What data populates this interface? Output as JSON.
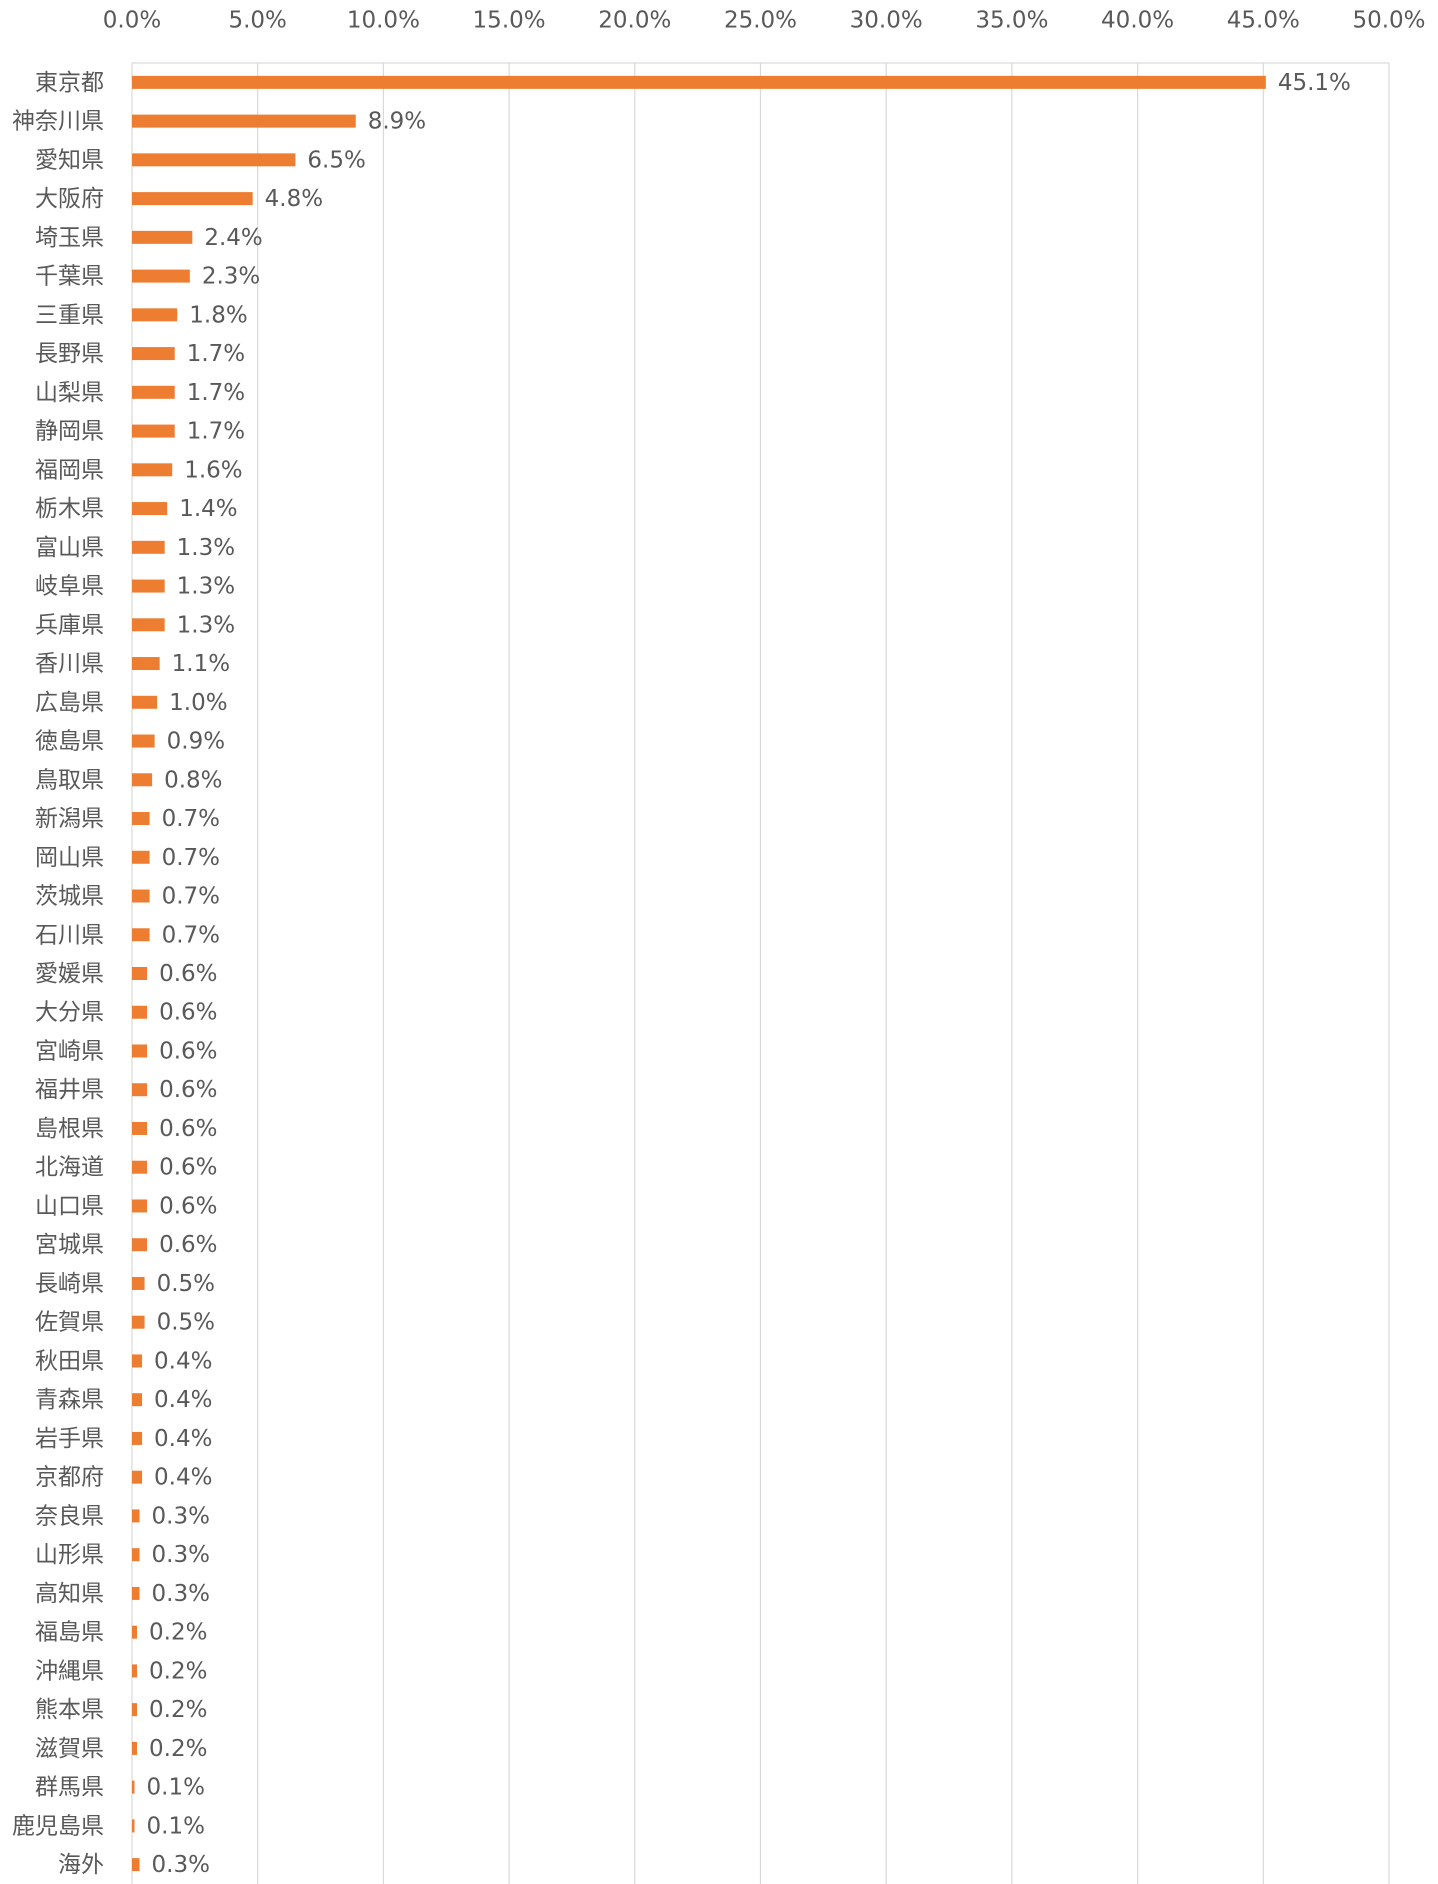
{
  "chart_data": {
    "type": "bar",
    "orientation": "horizontal",
    "color": "#ed7d31",
    "grid": true,
    "categories": [
      "東京都",
      "神奈川県",
      "愛知県",
      "大阪府",
      "埼玉県",
      "千葉県",
      "三重県",
      "長野県",
      "山梨県",
      "静岡県",
      "福岡県",
      "栃木県",
      "富山県",
      "岐阜県",
      "兵庫県",
      "香川県",
      "広島県",
      "徳島県",
      "鳥取県",
      "新潟県",
      "岡山県",
      "茨城県",
      "石川県",
      "愛媛県",
      "大分県",
      "宮崎県",
      "福井県",
      "島根県",
      "北海道",
      "山口県",
      "宮城県",
      "長崎県",
      "佐賀県",
      "秋田県",
      "青森県",
      "岩手県",
      "京都府",
      "奈良県",
      "山形県",
      "高知県",
      "福島県",
      "沖縄県",
      "熊本県",
      "滋賀県",
      "群馬県",
      "鹿児島県",
      "海外"
    ],
    "values": [
      45.1,
      8.9,
      6.5,
      4.8,
      2.4,
      2.3,
      1.8,
      1.7,
      1.7,
      1.7,
      1.6,
      1.4,
      1.3,
      1.3,
      1.3,
      1.1,
      1.0,
      0.9,
      0.8,
      0.7,
      0.7,
      0.7,
      0.7,
      0.6,
      0.6,
      0.6,
      0.6,
      0.6,
      0.6,
      0.6,
      0.6,
      0.5,
      0.5,
      0.4,
      0.4,
      0.4,
      0.4,
      0.3,
      0.3,
      0.3,
      0.2,
      0.2,
      0.2,
      0.2,
      0.1,
      0.1,
      0.3
    ],
    "value_labels": [
      "45.1%",
      "8.9%",
      "6.5%",
      "4.8%",
      "2.4%",
      "2.3%",
      "1.8%",
      "1.7%",
      "1.7%",
      "1.7%",
      "1.6%",
      "1.4%",
      "1.3%",
      "1.3%",
      "1.3%",
      "1.1%",
      "1.0%",
      "0.9%",
      "0.8%",
      "0.7%",
      "0.7%",
      "0.7%",
      "0.7%",
      "0.6%",
      "0.6%",
      "0.6%",
      "0.6%",
      "0.6%",
      "0.6%",
      "0.6%",
      "0.6%",
      "0.5%",
      "0.5%",
      "0.4%",
      "0.4%",
      "0.4%",
      "0.4%",
      "0.3%",
      "0.3%",
      "0.3%",
      "0.2%",
      "0.2%",
      "0.2%",
      "0.2%",
      "0.1%",
      "0.1%",
      "0.3%"
    ],
    "xlim": [
      0,
      50
    ],
    "xticks": [
      {
        "value": 0,
        "label": "0.0%"
      },
      {
        "value": 5,
        "label": "5.0%"
      },
      {
        "value": 10,
        "label": "10.0%"
      },
      {
        "value": 15,
        "label": "15.0%"
      },
      {
        "value": 20,
        "label": "20.0%"
      },
      {
        "value": 25,
        "label": "25.0%"
      },
      {
        "value": 30,
        "label": "30.0%"
      },
      {
        "value": 35,
        "label": "35.0%"
      },
      {
        "value": 40,
        "label": "40.0%"
      },
      {
        "value": 45,
        "label": "45.0%"
      },
      {
        "value": 50,
        "label": "50.0%"
      }
    ]
  }
}
